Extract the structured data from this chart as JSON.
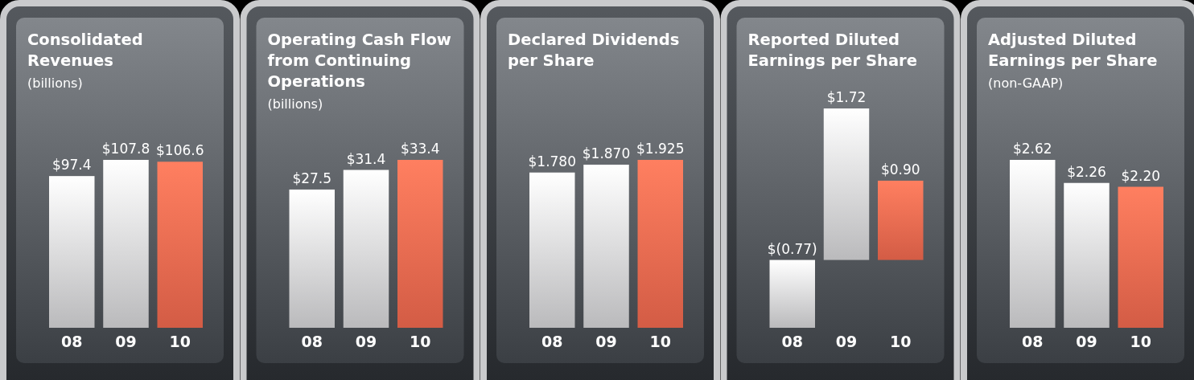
{
  "chart_data": [
    {
      "type": "bar",
      "title": "Consolidated\nRevenues",
      "subtitle": "(billions)",
      "categories": [
        "08",
        "09",
        "10"
      ],
      "values": [
        97.4,
        107.8,
        106.6
      ],
      "colors": [
        "#d6d7d9",
        "#d6d7d9",
        "#f36a50"
      ],
      "value_labels": [
        "$97.4",
        "$107.8",
        "$106.6"
      ]
    },
    {
      "type": "bar",
      "title": "Operating Cash Flow\nfrom Continuing\nOperations",
      "subtitle": "(billions)",
      "categories": [
        "08",
        "09",
        "10"
      ],
      "values": [
        27.5,
        31.4,
        33.4
      ],
      "colors": [
        "#d6d7d9",
        "#d6d7d9",
        "#f36a50"
      ],
      "value_labels": [
        "$27.5",
        "$31.4",
        "$33.4"
      ]
    },
    {
      "type": "bar",
      "title": "Declared Dividends\nper Share",
      "categories": [
        "08",
        "09",
        "10"
      ],
      "values": [
        1.78,
        1.87,
        1.925
      ],
      "colors": [
        "#d6d7d9",
        "#d6d7d9",
        "#f36a50"
      ],
      "value_labels": [
        "$1.780",
        "$1.870",
        "$1.925"
      ]
    },
    {
      "type": "bar",
      "title": "Reported Diluted\nEarnings per Share",
      "categories": [
        "08",
        "09",
        "10"
      ],
      "values": [
        -0.77,
        1.72,
        0.9
      ],
      "colors": [
        "#d6d7d9",
        "#d6d7d9",
        "#f36a50"
      ],
      "value_labels": [
        "$(0.77)",
        "$1.72",
        "$0.90"
      ]
    },
    {
      "type": "bar",
      "title": "Adjusted Diluted\nEarnings per Share",
      "subtitle": "(non-GAAP)",
      "categories": [
        "08",
        "09",
        "10"
      ],
      "values": [
        2.62,
        2.26,
        2.2
      ],
      "colors": [
        "#d6d7d9",
        "#d6d7d9",
        "#f36a50"
      ],
      "value_labels": [
        "$2.62",
        "$2.26",
        "$2.20"
      ]
    }
  ]
}
